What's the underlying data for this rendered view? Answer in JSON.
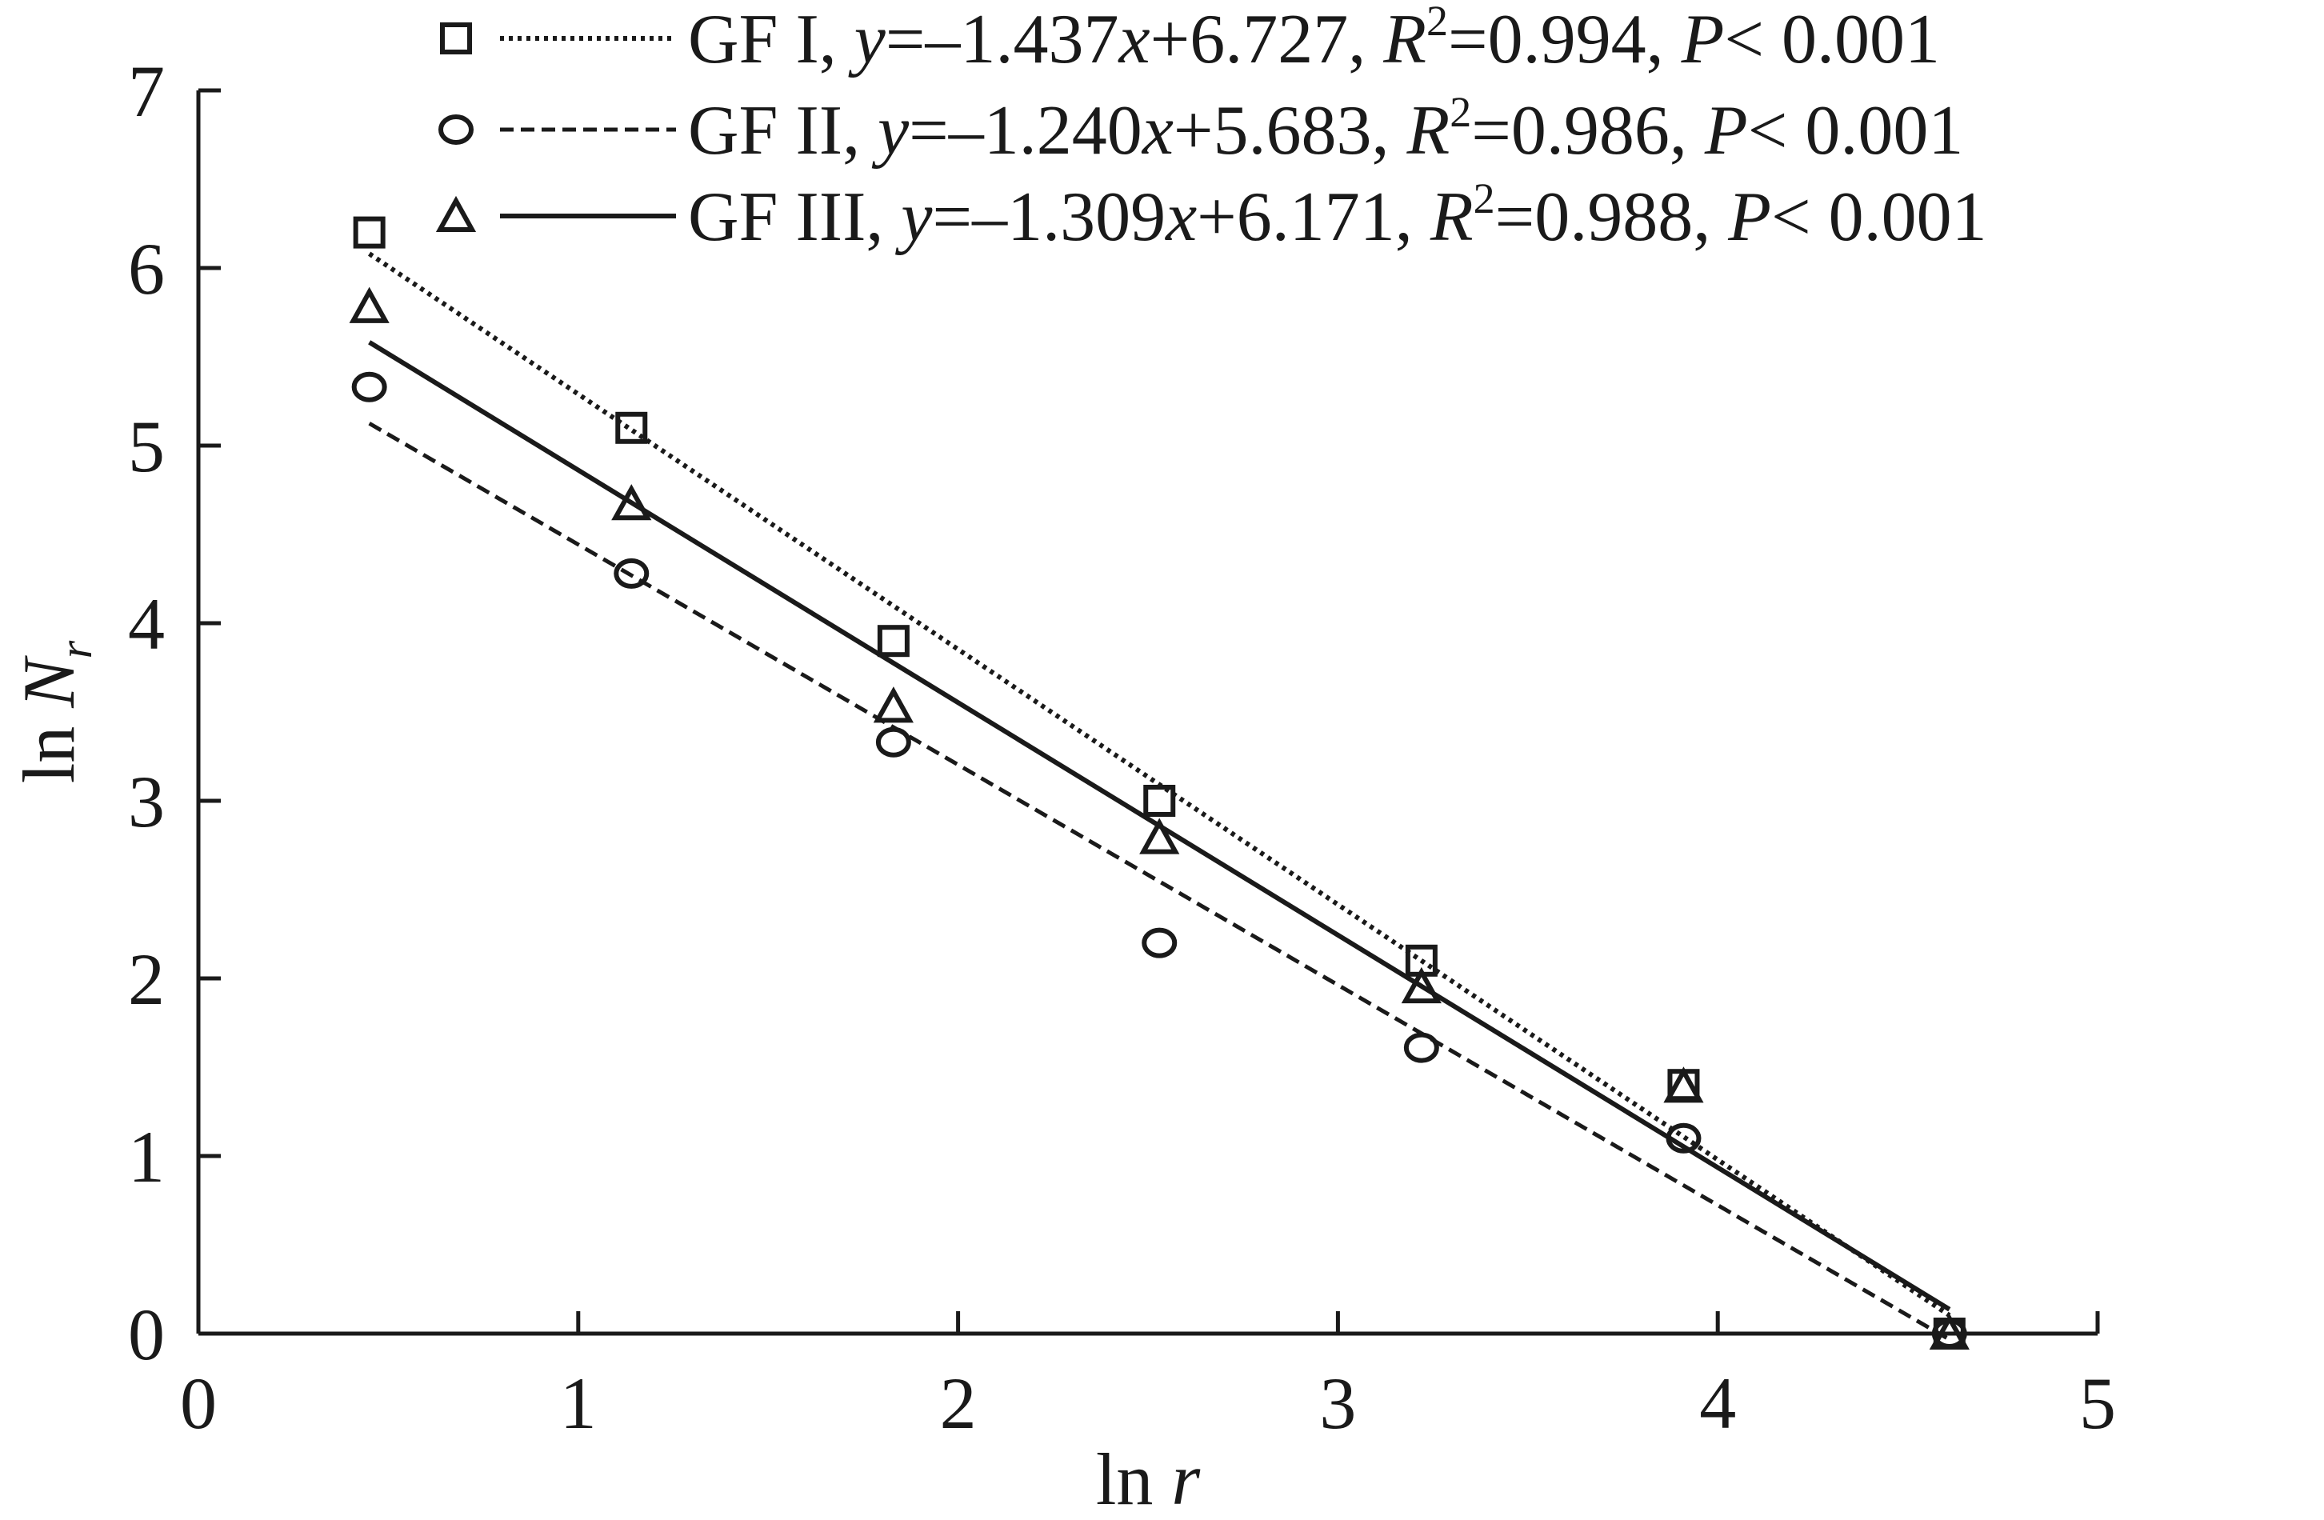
{
  "chart_data": {
    "type": "scatter",
    "xlabel": {
      "prefix": "ln ",
      "var": "r"
    },
    "ylabel": {
      "prefix": "ln ",
      "var": "N",
      "sub": "r"
    },
    "xlim": [
      0,
      5
    ],
    "ylim": [
      0,
      7
    ],
    "x_ticks": [
      "0",
      "1",
      "2",
      "3",
      "4",
      "5"
    ],
    "y_ticks": [
      "0",
      "1",
      "2",
      "3",
      "4",
      "5",
      "6",
      "7"
    ],
    "grid": false,
    "legend_position": "top-right",
    "line_color": "#1a1a1a",
    "x": [
      0.45,
      1.14,
      1.83,
      2.53,
      3.22,
      3.91,
      4.61
    ],
    "series": [
      {
        "name": "GF I",
        "marker": "square",
        "line_style": "dotted",
        "values": [
          6.2,
          5.1,
          3.9,
          3.0,
          2.1,
          1.4,
          0.0
        ],
        "fit": {
          "slope": -1.437,
          "intercept": 6.727
        },
        "legend": {
          "name": "GF I, ",
          "y": "y",
          "equation": "=–1.437",
          "x": "x",
          "intercept": "+6.727, ",
          "R": "R",
          "sup": "2",
          "r2": "=0.994, ",
          "P": "P",
          "p": "< 0.001"
        }
      },
      {
        "name": "GF II",
        "marker": "circle",
        "line_style": "dashed",
        "values": [
          5.33,
          4.28,
          3.33,
          2.2,
          1.61,
          1.1,
          0.0
        ],
        "fit": {
          "slope": -1.24,
          "intercept": 5.683
        },
        "legend": {
          "name": "GF II, ",
          "y": "y",
          "equation": "=–1.240",
          "x": "x",
          "intercept": "+5.683, ",
          "R": "R",
          "sup": "2",
          "r2": "=0.986, ",
          "P": "P",
          "p": "< 0.001"
        }
      },
      {
        "name": "GF III",
        "marker": "triangle",
        "line_style": "solid",
        "values": [
          5.78,
          4.67,
          3.53,
          2.79,
          1.95,
          1.39,
          0.0
        ],
        "fit": {
          "slope": -1.309,
          "intercept": 6.171
        },
        "legend": {
          "name": "GF III, ",
          "y": "y",
          "equation": "=–1.309",
          "x": "x",
          "intercept": "+6.171, ",
          "R": "R",
          "sup": "2",
          "r2": "=0.988, ",
          "P": "P",
          "p": "< 0.001"
        }
      }
    ]
  }
}
